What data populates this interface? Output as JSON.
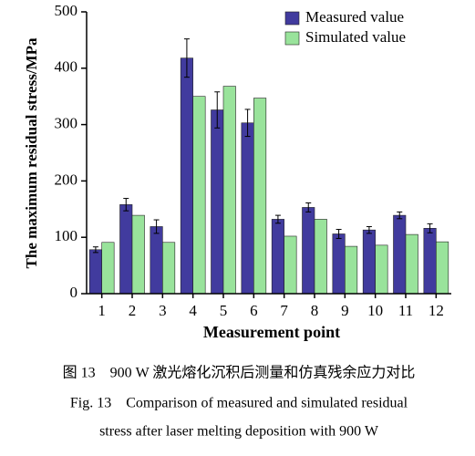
{
  "chart_data": {
    "type": "bar",
    "categories": [
      "1",
      "2",
      "3",
      "4",
      "5",
      "6",
      "7",
      "8",
      "9",
      "10",
      "11",
      "12"
    ],
    "series": [
      {
        "name": "Measured value",
        "color": "#413b9e",
        "values": [
          78,
          158,
          119,
          418,
          326,
          303,
          132,
          153,
          106,
          113,
          139,
          116
        ],
        "errors": [
          5,
          11,
          12,
          34,
          32,
          24,
          7,
          8,
          8,
          6,
          6,
          8
        ]
      },
      {
        "name": "Simulated value",
        "color": "#99e39b",
        "values": [
          91,
          139,
          91,
          350,
          368,
          347,
          102,
          132,
          84,
          86,
          105,
          92
        ]
      }
    ],
    "ylim": [
      0,
      500
    ],
    "yticks": [
      0,
      100,
      200,
      300,
      400,
      500
    ],
    "y_label": "The maximum residual stress/MPa",
    "x_label": "Measurement point",
    "legend": "top-right",
    "caption": [
      "图 13　900 W 激光熔化沉积后测量和仿真残余应力对比",
      "Fig. 13　Comparison of measured and simulated residual",
      "stress after laser melting deposition with 900 W"
    ]
  }
}
